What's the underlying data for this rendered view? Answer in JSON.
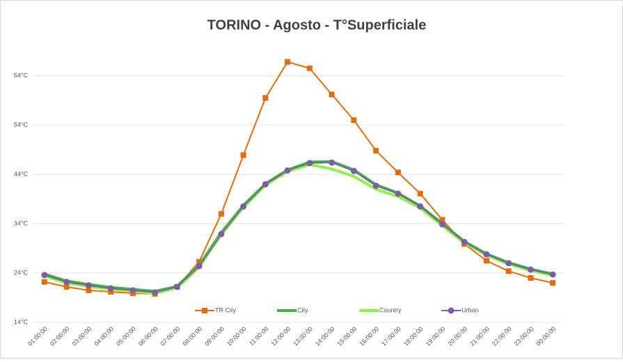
{
  "chart_data": {
    "type": "line",
    "title": "TORINO - Agosto - T°Superficiale",
    "categories": [
      "01:00:00",
      "02:00:00",
      "03:00:00",
      "04:00:00",
      "05:00:00",
      "06:00:00",
      "07:00:00",
      "08:00:00",
      "09:00:00",
      "10:00:00",
      "11:00:00",
      "12:00:00",
      "13:00:00",
      "14:00:00",
      "15:00:00",
      "16:00:00",
      "17:00:00",
      "18:00:00",
      "19:00:00",
      "20:00:00",
      "21:00:00",
      "22:00:00",
      "23:00:00",
      "00:00:00"
    ],
    "series": [
      {
        "name": "TR City",
        "color": "#e46c0a",
        "marker": "square",
        "values": [
          22.2,
          21.2,
          20.5,
          20.2,
          19.9,
          19.8,
          21.2,
          26.3,
          36.0,
          47.9,
          59.5,
          66.8,
          65.5,
          60.2,
          55.0,
          48.8,
          44.4,
          40.1,
          34.8,
          29.9,
          26.5,
          24.4,
          23.0,
          22.0
        ]
      },
      {
        "name": "City",
        "color": "#3cb93c",
        "marker": "none",
        "values": [
          23.8,
          22.4,
          21.7,
          21.1,
          20.7,
          20.3,
          21.3,
          25.6,
          32.2,
          37.7,
          42.1,
          44.9,
          46.5,
          46.6,
          44.9,
          41.9,
          40.2,
          37.6,
          34.0,
          30.4,
          27.9,
          26.1,
          24.8,
          23.8
        ]
      },
      {
        "name": "Country",
        "color": "#92f04a",
        "marker": "none",
        "values": [
          23.4,
          22.0,
          21.3,
          20.7,
          20.3,
          19.9,
          21.0,
          25.2,
          31.8,
          37.3,
          41.8,
          44.6,
          46.0,
          45.1,
          43.6,
          41.0,
          39.5,
          37.2,
          33.6,
          30.1,
          27.6,
          25.8,
          24.5,
          23.5
        ]
      },
      {
        "name": "Urban",
        "color": "#7b5ea7",
        "marker": "circle",
        "values": [
          23.6,
          22.2,
          21.5,
          20.9,
          20.5,
          20.1,
          21.2,
          25.4,
          31.9,
          37.5,
          42.0,
          44.8,
          46.3,
          46.4,
          44.7,
          41.7,
          40.1,
          37.5,
          33.9,
          30.3,
          27.8,
          26.0,
          24.7,
          23.7
        ]
      }
    ],
    "ylim": [
      14,
      74
    ],
    "yticks": [
      {
        "value": 14,
        "label": "14°C"
      },
      {
        "value": 24,
        "label": "24°C"
      },
      {
        "value": 34,
        "label": "34°C"
      },
      {
        "value": 44,
        "label": "44°C"
      },
      {
        "value": 54,
        "label": "54°C"
      },
      {
        "value": 64,
        "label": "64°C"
      }
    ],
    "grid": true
  }
}
